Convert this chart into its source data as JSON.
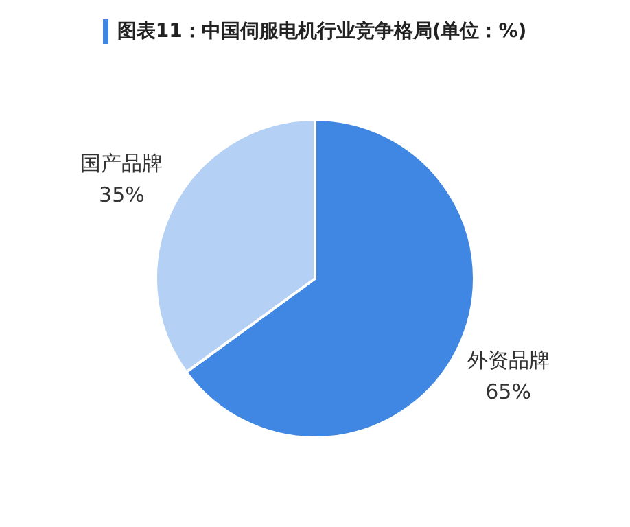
{
  "chart_data": {
    "type": "pie",
    "title": "图表11：中国伺服电机行业竞争格局(单位：%)",
    "categories": [
      "外资品牌",
      "国产品牌"
    ],
    "values": [
      65,
      35
    ],
    "colors": [
      "#3f87e2",
      "#b5d0f5"
    ],
    "value_labels": [
      "65%",
      "35%"
    ]
  }
}
